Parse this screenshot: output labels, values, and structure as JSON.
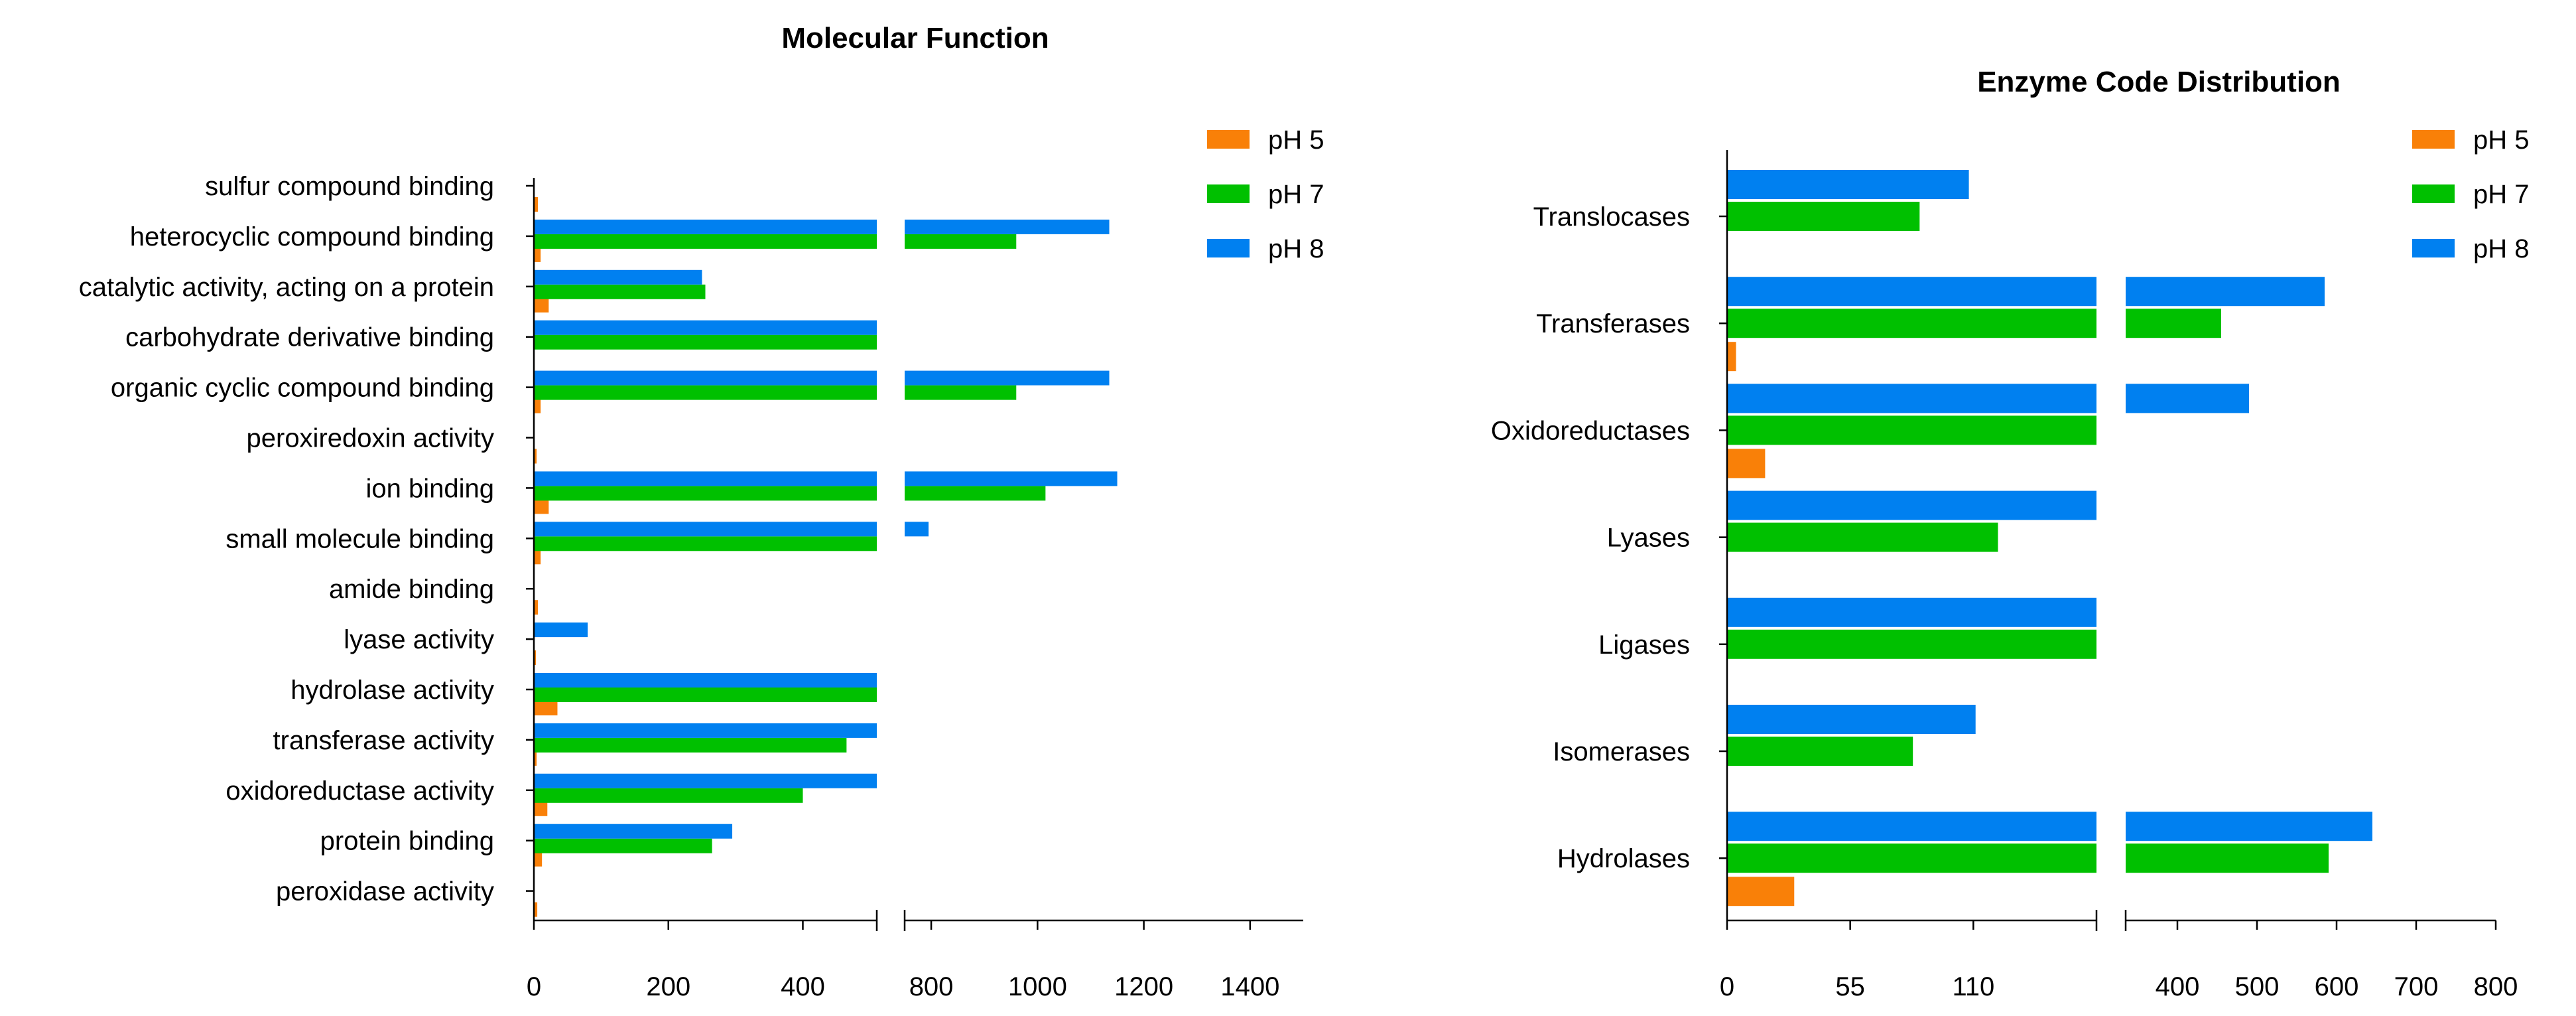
{
  "chart_data": [
    {
      "type": "bar",
      "orientation": "horizontal",
      "title": "Molecular Function",
      "xlabel": "",
      "ylabel": "",
      "axis_break": {
        "from": 500,
        "to": 750
      },
      "x_ticks": [
        "0",
        "200",
        "400",
        "800",
        "1000",
        "1200",
        "1400"
      ],
      "xlim": [
        0,
        1500
      ],
      "categories": [
        "sulfur compound binding",
        "heterocyclic compound binding",
        "catalytic activity, acting on a protein",
        "carbohydrate derivative binding",
        "organic cyclic compound binding",
        "peroxiredoxin activity",
        "ion binding",
        "small molecule binding",
        "amide binding",
        "lyase activity",
        "hydrolase activity",
        "transferase activity",
        "oxidoreductase activity",
        "protein binding",
        "peroxidase activity"
      ],
      "series": [
        {
          "name": "pH 5",
          "color": "#F98008",
          "values": [
            6,
            10,
            22,
            0,
            10,
            4,
            22,
            10,
            6,
            2,
            35,
            4,
            20,
            12,
            5
          ]
        },
        {
          "name": "pH 7",
          "color": "#00C000",
          "values": [
            0,
            960,
            255,
            510,
            960,
            0,
            1015,
            510,
            0,
            0,
            510,
            465,
            400,
            265,
            0
          ]
        },
        {
          "name": "pH 8",
          "color": "#0080F0",
          "values": [
            0,
            1135,
            250,
            510,
            1135,
            0,
            1150,
            795,
            0,
            80,
            510,
            510,
            510,
            295,
            0
          ]
        }
      ],
      "legend": "top-right"
    },
    {
      "type": "bar",
      "orientation": "horizontal",
      "title": "Enzyme Code Distribution",
      "xlabel": "",
      "ylabel": "",
      "axis_break": {
        "from": 150,
        "to": 400
      },
      "x_ticks": [
        "0",
        "55",
        "110",
        "400",
        "500",
        "600",
        "700",
        "800"
      ],
      "xlim": [
        0,
        800
      ],
      "categories": [
        "Translocases",
        "Transferases",
        "Oxidoreductases",
        "Lyases",
        "Ligases",
        "Isomerases",
        "Hydrolases"
      ],
      "series": [
        {
          "name": "pH 5",
          "color": "#F98008",
          "values": [
            0,
            4,
            17,
            0,
            0,
            0,
            30
          ]
        },
        {
          "name": "pH 7",
          "color": "#00C000",
          "values": [
            86,
            455,
            165,
            121,
            165,
            83,
            590
          ]
        },
        {
          "name": "pH 8",
          "color": "#0080F0",
          "values": [
            108,
            585,
            490,
            165,
            165,
            111,
            645
          ]
        }
      ],
      "legend": "top-right"
    }
  ]
}
